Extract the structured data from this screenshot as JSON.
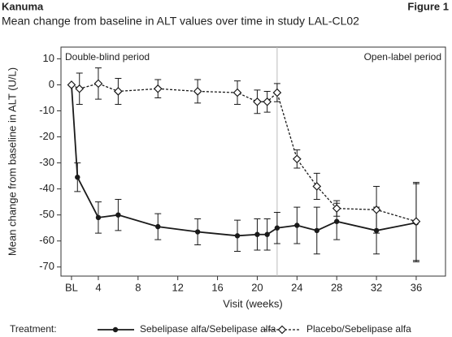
{
  "header": {
    "product": "Kanuma",
    "figure": "Figure 1"
  },
  "chart_data": {
    "type": "line",
    "title": "Mean change from baseline in ALT values over time in study LAL-CL02",
    "ylabel": "Mean change from baseline in ALT (U/L)",
    "xlabel": "Visit (weeks)",
    "annotations": [
      "Double-blind period",
      "Open-label period"
    ],
    "reference_x": 22,
    "legend_title": "Treatment:",
    "xlim": [
      0.24,
      38.95
    ],
    "ylim": [
      -73.5,
      14.5
    ],
    "xticks": [
      {
        "value": 1.3,
        "label": "BL"
      },
      4,
      8,
      12,
      16,
      20,
      24,
      28,
      32,
      36
    ],
    "yticks": [
      10,
      0,
      -10,
      -20,
      -30,
      -40,
      -50,
      -60,
      -70
    ],
    "series": [
      {
        "name": "Sebelipase alfa/Sebelipase alfa",
        "color": "#1a1a1a",
        "line_style": "solid",
        "marker": "circle",
        "x": [
          1.3,
          1.9,
          4,
          6,
          10,
          14,
          18,
          20,
          21,
          22,
          24,
          26,
          28,
          32,
          36
        ],
        "values": [
          0,
          -35.5,
          -51,
          -50,
          -54.5,
          -56.5,
          -58,
          -57.5,
          -57.5,
          -55,
          -54,
          -56,
          -52.5,
          -56,
          -53
        ],
        "errors": [
          null,
          5.5,
          6,
          6,
          5,
          5,
          6,
          6,
          6,
          6,
          7,
          9,
          7,
          9,
          15
        ]
      },
      {
        "name": "Placebo/Sebelipase alfa",
        "color": "#1a1a1a",
        "line_style": "dashed",
        "marker": "diamond",
        "x": [
          1.3,
          2.1,
          4,
          6,
          10,
          14,
          18,
          20,
          21,
          22,
          24,
          26,
          28,
          32,
          36
        ],
        "values": [
          0,
          -1.5,
          0.5,
          -2.5,
          -1.5,
          -2.5,
          -3,
          -6.5,
          -6.5,
          -3,
          -28.5,
          -39,
          -47.5,
          -48,
          -52.5
        ],
        "errors": [
          null,
          6,
          6,
          5,
          3.5,
          4.5,
          4.5,
          4.5,
          4,
          3.5,
          3.5,
          5,
          3,
          9,
          15
        ]
      }
    ]
  }
}
